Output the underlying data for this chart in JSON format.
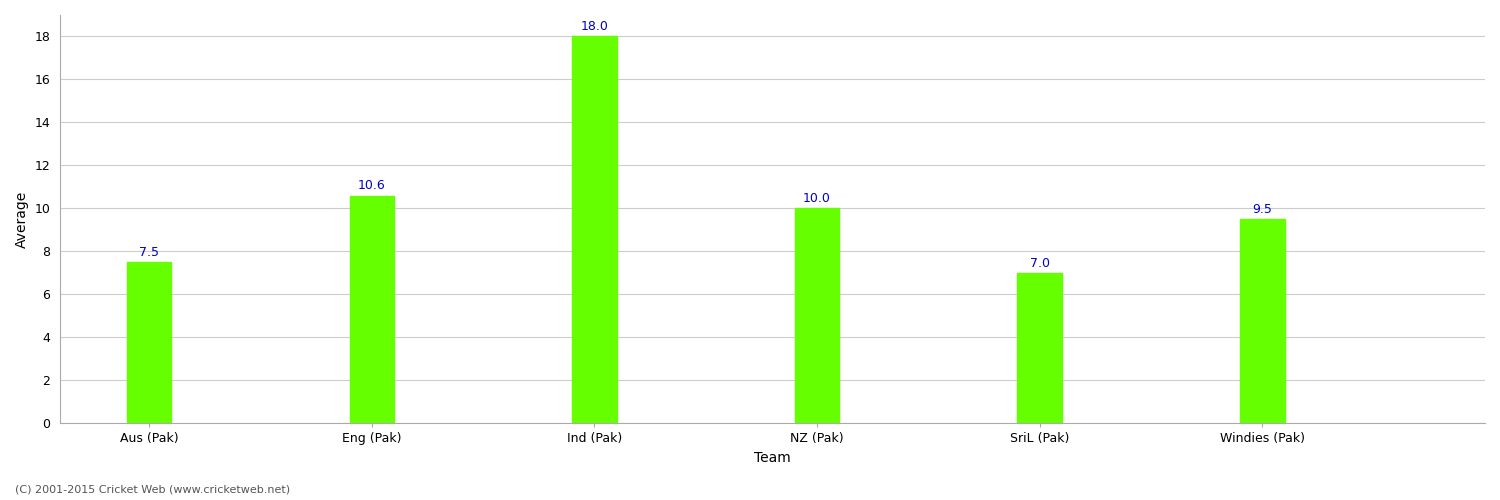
{
  "categories": [
    "Aus (Pak)",
    "Eng (Pak)",
    "Ind (Pak)",
    "NZ (Pak)",
    "SriL (Pak)",
    "Windies (Pak)"
  ],
  "values": [
    7.5,
    10.6,
    18.0,
    10.0,
    7.0,
    9.5
  ],
  "bar_color": "#66ff00",
  "bar_edge_color": "#66ff00",
  "xlabel": "Team",
  "ylabel": "Average",
  "ylim": [
    0,
    19
  ],
  "yticks": [
    0,
    2,
    4,
    6,
    8,
    10,
    12,
    14,
    16,
    18
  ],
  "label_color": "#0000cc",
  "label_fontsize": 9,
  "axis_label_fontsize": 10,
  "tick_fontsize": 9,
  "background_color": "#ffffff",
  "grid_color": "#cccccc",
  "footer_text": "(C) 2001-2015 Cricket Web (www.cricketweb.net)",
  "footer_fontsize": 8,
  "footer_color": "#555555",
  "bar_width": 0.25,
  "xlim": [
    -0.5,
    7.5
  ]
}
